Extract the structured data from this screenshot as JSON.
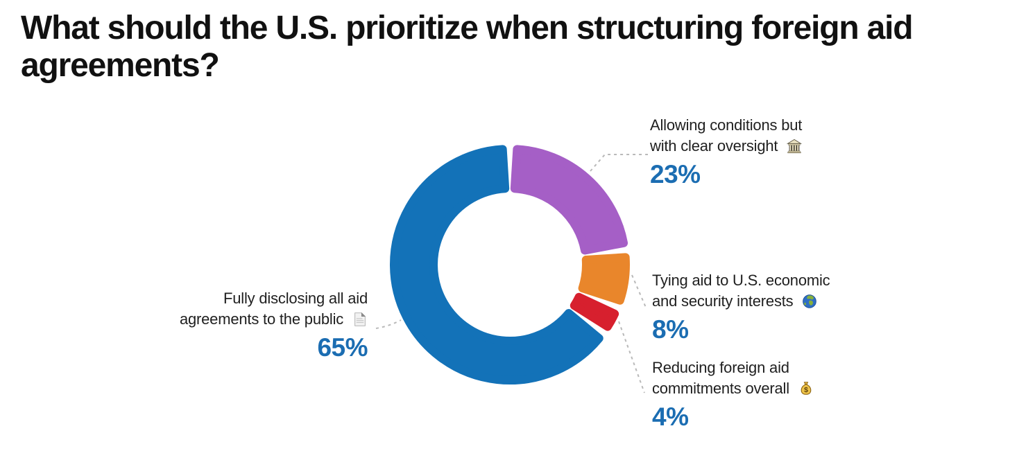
{
  "title_lines": [
    "What should the U.S. prioritize when structuring foreign aid",
    "agreements?"
  ],
  "colors": {
    "background": "#ffffff",
    "title_text": "#111111",
    "label_text": "#1f1f1f",
    "accent_value_text": "#1b6db2",
    "leader_line": "#b9b9b9",
    "segment_gap": "#ffffff"
  },
  "chart_data": {
    "type": "pie",
    "variant": "donut",
    "title": "What should the U.S. prioritize when structuring foreign aid agreements?",
    "start_angle_deg": 0,
    "direction": "clockwise",
    "inner_radius_ratio": 0.6,
    "segments": [
      {
        "label": "Allowing conditions but with clear oversight",
        "label_lines": [
          "Allowing conditions but",
          "with clear oversight"
        ],
        "emoji": "🏛",
        "icon": "classical-building-icon",
        "value": 23,
        "value_label": "23%",
        "color": "#a55fc6"
      },
      {
        "label": "Tying aid to U.S. economic and security interests",
        "label_lines": [
          "Tying aid to U.S. economic",
          "and security interests"
        ],
        "emoji": "🌍",
        "icon": "globe-icon",
        "value": 8,
        "value_label": "8%",
        "color": "#e9862b"
      },
      {
        "label": "Reducing foreign aid commitments overall",
        "label_lines": [
          "Reducing foreign aid",
          "commitments overall"
        ],
        "emoji": "💰",
        "icon": "money-bag-icon",
        "value": 4,
        "value_label": "4%",
        "color": "#d7202e"
      },
      {
        "label": "Fully disclosing all aid agreements to the public",
        "label_lines": [
          "Fully disclosing all aid",
          "agreements to the public"
        ],
        "emoji": "📄",
        "icon": "document-icon",
        "value": 65,
        "value_label": "65%",
        "color": "#1372b8"
      }
    ]
  }
}
